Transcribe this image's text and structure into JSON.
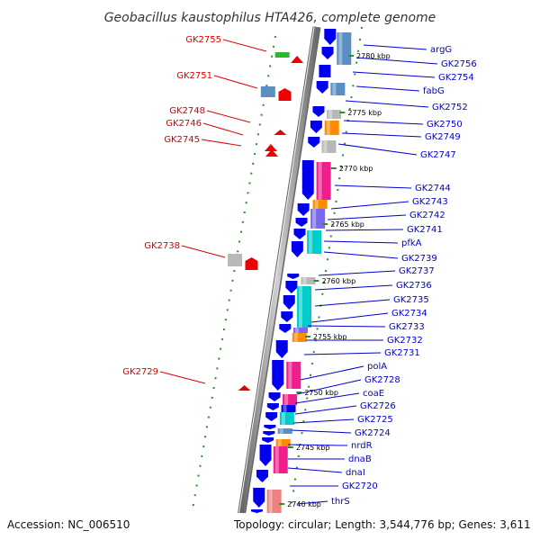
{
  "title": "Geobacillus kaustophilus HTA426, complete genome",
  "footer": {
    "accession": "Accession: NC_006510",
    "topology": "Topology: circular; Length: 3,544,776 bp; Genes: 3,611"
  },
  "colors": {
    "forward_label": "#0000cc",
    "reverse_label": "#dd0000",
    "gene_blue": "#0000ee",
    "gene_pink": "#ee1e8c",
    "gene_cyan": "#00cccc",
    "gene_purple": "#7b68ee",
    "gene_orange": "#ff8c00",
    "gene_steel": "#5b8fc4",
    "gene_gray": "#b8b8b8",
    "gene_salmon": "#f08080",
    "gene_green": "#2eb82e",
    "gene_red": "#ee0000",
    "backbone": "#888888",
    "ticks": "#2e8b2e"
  },
  "ticks": [
    "2780 kbp",
    "2775 kbp",
    "2770 kbp",
    "2765 kbp",
    "2760 kbp",
    "2755 kbp",
    "2750 kbp",
    "2745 kbp",
    "2740 kbp"
  ],
  "right_labels": [
    "argG",
    "GK2756",
    "GK2754",
    "fabG",
    "GK2752",
    "GK2750",
    "GK2749",
    "GK2747",
    "GK2744",
    "GK2743",
    "GK2742",
    "GK2741",
    "pfkA",
    "GK2739",
    "GK2737",
    "GK2736",
    "GK2735",
    "GK2734",
    "GK2733",
    "GK2732",
    "GK2731",
    "polA",
    "GK2728",
    "coaE",
    "GK2726",
    "GK2725",
    "GK2724",
    "nrdR",
    "dnaB",
    "dnaI",
    "GK2720",
    "thrS"
  ],
  "left_labels": [
    "GK2755",
    "GK2751",
    "GK2748",
    "GK2746",
    "GK2745",
    "GK2738",
    "GK2729"
  ]
}
